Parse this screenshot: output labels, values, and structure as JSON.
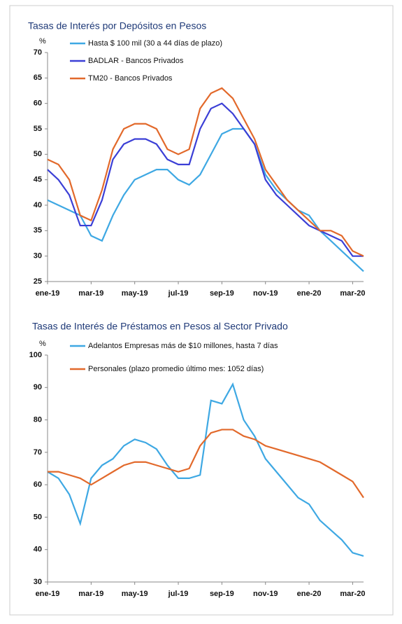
{
  "chart_data": [
    {
      "type": "line",
      "title": "Tasas de Interés por Depósitos en Pesos",
      "y_unit": "%",
      "categories": [
        "ene-19",
        null,
        null,
        null,
        "mar-19",
        null,
        null,
        null,
        "may-19",
        null,
        null,
        null,
        "jul-19",
        null,
        null,
        null,
        "sep-19",
        null,
        null,
        null,
        "nov-19",
        null,
        null,
        null,
        "ene-20",
        null,
        null,
        null,
        "mar-20",
        null
      ],
      "ylim": [
        25,
        70
      ],
      "yticks": [
        25,
        30,
        35,
        40,
        45,
        50,
        55,
        60,
        65,
        70
      ],
      "series": [
        {
          "name": "Hasta $ 100 mil (30 a 44 días de plazo)",
          "color": "#3ea8e3",
          "values": [
            41,
            40,
            39,
            38,
            34,
            33,
            38,
            42,
            45,
            46,
            47,
            47,
            45,
            44,
            46,
            50,
            54,
            55,
            55,
            52,
            46,
            43,
            41,
            39,
            38,
            35,
            33,
            31,
            29,
            27
          ]
        },
        {
          "name": "BADLAR - Bancos Privados",
          "color": "#3b3fd6",
          "values": [
            47,
            45,
            42,
            36,
            36,
            41,
            49,
            52,
            53,
            53,
            52,
            49,
            48,
            48,
            55,
            59,
            60,
            58,
            55,
            52,
            45,
            42,
            40,
            38,
            36,
            35,
            34,
            33,
            30,
            30
          ]
        },
        {
          "name": "TM20 - Bancos Privados",
          "color": "#e2692b",
          "values": [
            49,
            48,
            45,
            38,
            37,
            43,
            51,
            55,
            56,
            56,
            55,
            51,
            50,
            51,
            59,
            62,
            63,
            61,
            57,
            53,
            47,
            44,
            41,
            39,
            37,
            35,
            35,
            34,
            31,
            30
          ]
        }
      ]
    },
    {
      "type": "line",
      "title": "Tasas de Interés de Préstamos en Pesos al Sector Privado",
      "y_unit": "%",
      "categories": [
        "ene-19",
        null,
        null,
        null,
        "mar-19",
        null,
        null,
        null,
        "may-19",
        null,
        null,
        null,
        "jul-19",
        null,
        null,
        null,
        "sep-19",
        null,
        null,
        null,
        "nov-19",
        null,
        null,
        null,
        "ene-20",
        null,
        null,
        null,
        "mar-20",
        null
      ],
      "ylim": [
        30,
        100
      ],
      "yticks": [
        30,
        40,
        50,
        60,
        70,
        80,
        90,
        100
      ],
      "series": [
        {
          "name": "Adelantos Empresas más de $10 millones, hasta 7 días",
          "color": "#3ea8e3",
          "values": [
            64,
            62,
            57,
            48,
            62,
            66,
            68,
            72,
            74,
            73,
            71,
            66,
            62,
            62,
            63,
            86,
            85,
            91,
            80,
            75,
            68,
            64,
            60,
            56,
            54,
            49,
            46,
            43,
            39,
            38
          ]
        },
        {
          "name": "Personales (plazo promedio último mes: 1052 días)",
          "color": "#e2692b",
          "values": [
            64,
            64,
            63,
            62,
            60,
            62,
            64,
            66,
            67,
            67,
            66,
            65,
            64,
            65,
            72,
            76,
            77,
            77,
            75,
            74,
            72,
            71,
            70,
            69,
            68,
            67,
            65,
            63,
            61,
            56
          ]
        }
      ]
    }
  ]
}
